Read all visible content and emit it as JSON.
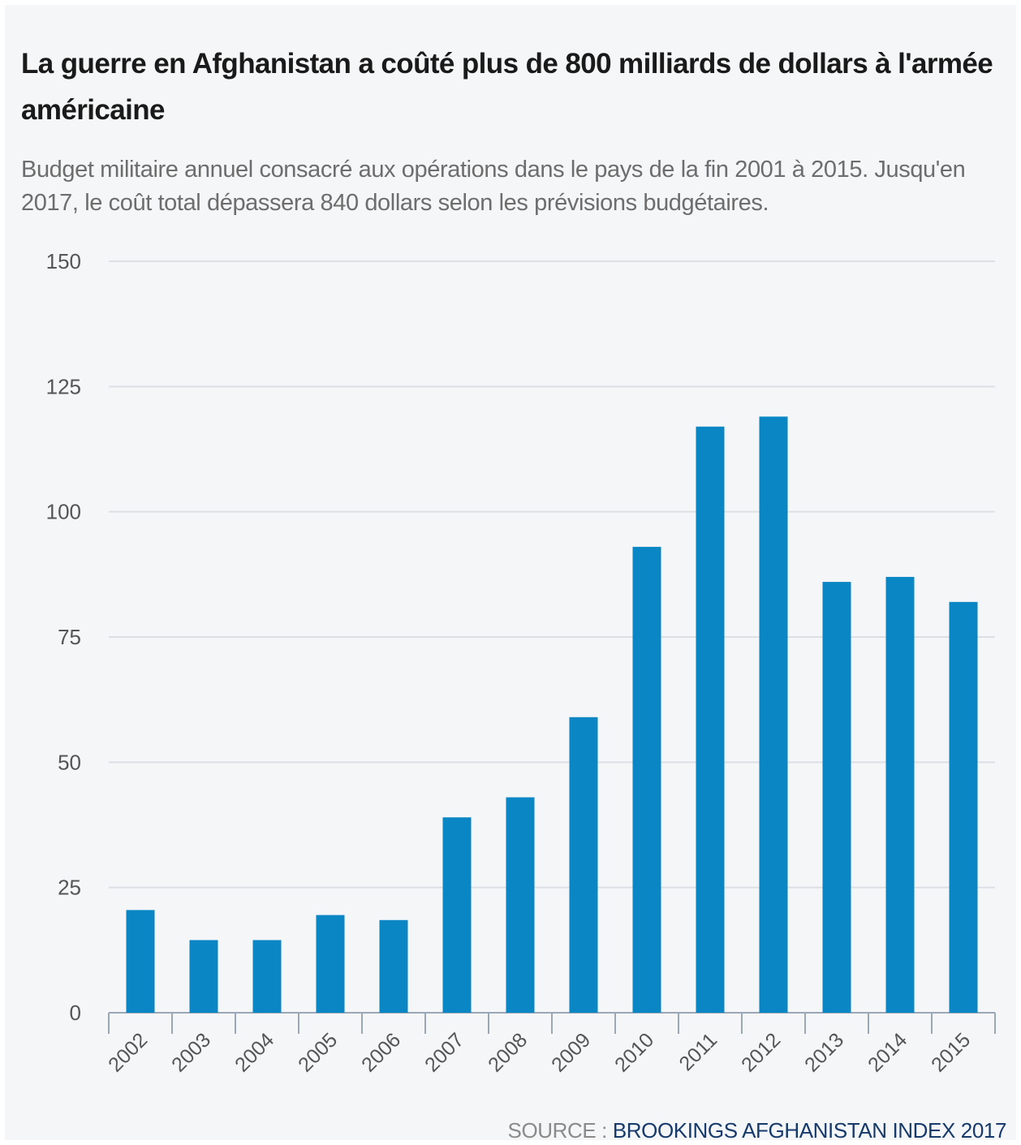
{
  "title": "La guerre en Afghanistan a coûté plus de 800 milliards de dollars à l'armée américaine",
  "subtitle": "Budget militaire annuel consacré aux opérations dans le pays de la fin 2001 à 2015. Jusqu'en 2017, le coût total dépassera 840 dollars selon les prévisions budgétaires.",
  "source": {
    "label": "SOURCE : ",
    "value": "BROOKINGS AFGHANISTAN INDEX 2017"
  },
  "colors": {
    "bar": "#0a86c4",
    "grid": "#dcdfe4",
    "axis": "#9aa7b6"
  },
  "chart_data": {
    "type": "bar",
    "categories": [
      "2002",
      "2003",
      "2004",
      "2005",
      "2006",
      "2007",
      "2008",
      "2009",
      "2010",
      "2011",
      "2012",
      "2013",
      "2014",
      "2015"
    ],
    "values": [
      20.5,
      14.5,
      14.5,
      19.5,
      18.5,
      39,
      43,
      59,
      93,
      117,
      119,
      86,
      87,
      82
    ],
    "ylim": [
      0,
      150
    ],
    "yticks": [
      0,
      25,
      50,
      75,
      100,
      125,
      150
    ],
    "grid": true,
    "title": "La guerre en Afghanistan a coûté plus de 800 milliards de dollars à l'armée américaine",
    "xlabel": "",
    "ylabel": ""
  }
}
